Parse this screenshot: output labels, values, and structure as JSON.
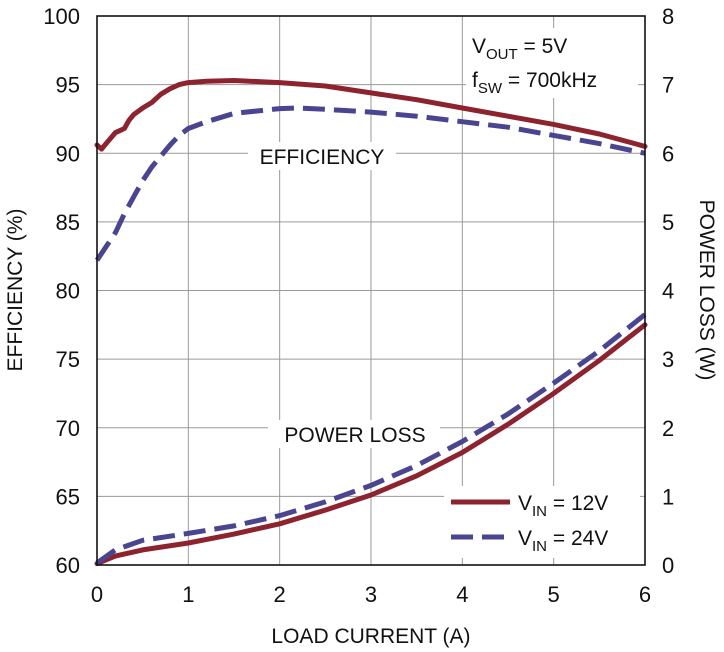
{
  "colors": {
    "vin12": "#8e2330",
    "vin24": "#4a4590",
    "grid": "#9a9a9a",
    "text": "#111111"
  },
  "chart_data": {
    "type": "line",
    "xlabel": "LOAD CURRENT (A)",
    "ylabel_left": "EFFICIENCY (%)",
    "ylabel_right": "POWER LOSS (W)",
    "xlim": [
      0,
      6
    ],
    "ylim_left": [
      60,
      100
    ],
    "ylim_right": [
      0,
      8
    ],
    "x_ticks": [
      "0",
      "1",
      "2",
      "3",
      "4",
      "5",
      "6"
    ],
    "y_ticks_left": [
      "60",
      "65",
      "70",
      "75",
      "80",
      "85",
      "90",
      "95",
      "100"
    ],
    "y_ticks_right": [
      "0",
      "1",
      "2",
      "3",
      "4",
      "5",
      "6",
      "7",
      "8"
    ],
    "grid": true,
    "conditions": {
      "vout_base": "V",
      "vout_sub": "OUT",
      "vout_rest": " = 5V",
      "fsw_base": "f",
      "fsw_sub": "SW",
      "fsw_rest": " = 700kHz"
    },
    "annotations": {
      "efficiency": "EFFICIENCY",
      "power_loss": "POWER LOSS"
    },
    "legend": {
      "position": "bottom-right",
      "entries": [
        {
          "base": "V",
          "sub": "IN",
          "rest": " = 12V",
          "series": "vin12"
        },
        {
          "base": "V",
          "sub": "IN",
          "rest": " = 24V",
          "series": "vin24"
        }
      ]
    },
    "series": [
      {
        "id": "vin12",
        "name": "VIN = 12V",
        "metric": "efficiency",
        "axis": "left",
        "style": "solid",
        "x": [
          0,
          0.05,
          0.1,
          0.2,
          0.3,
          0.35,
          0.4,
          0.5,
          0.6,
          0.7,
          0.8,
          0.9,
          1.0,
          1.2,
          1.5,
          2.0,
          2.5,
          3.0,
          3.5,
          4.0,
          4.5,
          5.0,
          5.5,
          6.0
        ],
        "y": [
          90.6,
          90.3,
          90.7,
          91.5,
          91.8,
          92.4,
          92.8,
          93.3,
          93.7,
          94.3,
          94.7,
          95.0,
          95.15,
          95.25,
          95.3,
          95.15,
          94.9,
          94.4,
          93.9,
          93.3,
          92.7,
          92.1,
          91.4,
          90.5
        ]
      },
      {
        "id": "vin24",
        "name": "VIN = 24V",
        "metric": "efficiency",
        "axis": "left",
        "style": "dashed",
        "x": [
          0,
          0.1,
          0.2,
          0.3,
          0.4,
          0.5,
          0.6,
          0.7,
          0.8,
          0.9,
          1.0,
          1.2,
          1.5,
          2.0,
          2.2,
          2.5,
          3.0,
          3.5,
          4.0,
          4.5,
          5.0,
          5.5,
          6.0
        ],
        "y": [
          82.2,
          83.2,
          84.2,
          85.6,
          86.8,
          88.0,
          89.0,
          89.8,
          90.6,
          91.3,
          91.8,
          92.3,
          92.9,
          93.25,
          93.3,
          93.2,
          93.0,
          92.7,
          92.3,
          91.9,
          91.3,
          90.7,
          90.0
        ]
      },
      {
        "id": "vin12",
        "name": "VIN = 12V",
        "metric": "power_loss",
        "axis": "right",
        "style": "solid",
        "x": [
          0,
          0.2,
          0.5,
          1.0,
          1.5,
          2.0,
          2.5,
          3.0,
          3.5,
          4.0,
          4.5,
          5.0,
          5.5,
          6.0
        ],
        "y": [
          0.02,
          0.13,
          0.22,
          0.32,
          0.45,
          0.6,
          0.8,
          1.02,
          1.3,
          1.64,
          2.05,
          2.5,
          2.98,
          3.5
        ]
      },
      {
        "id": "vin24",
        "name": "VIN = 24V",
        "metric": "power_loss",
        "axis": "right",
        "style": "dashed",
        "x": [
          0,
          0.2,
          0.5,
          1.0,
          1.5,
          2.0,
          2.5,
          3.0,
          3.5,
          4.0,
          4.5,
          5.0,
          5.5,
          6.0
        ],
        "y": [
          0.03,
          0.22,
          0.36,
          0.46,
          0.57,
          0.72,
          0.92,
          1.16,
          1.45,
          1.8,
          2.2,
          2.65,
          3.12,
          3.65
        ]
      }
    ]
  }
}
